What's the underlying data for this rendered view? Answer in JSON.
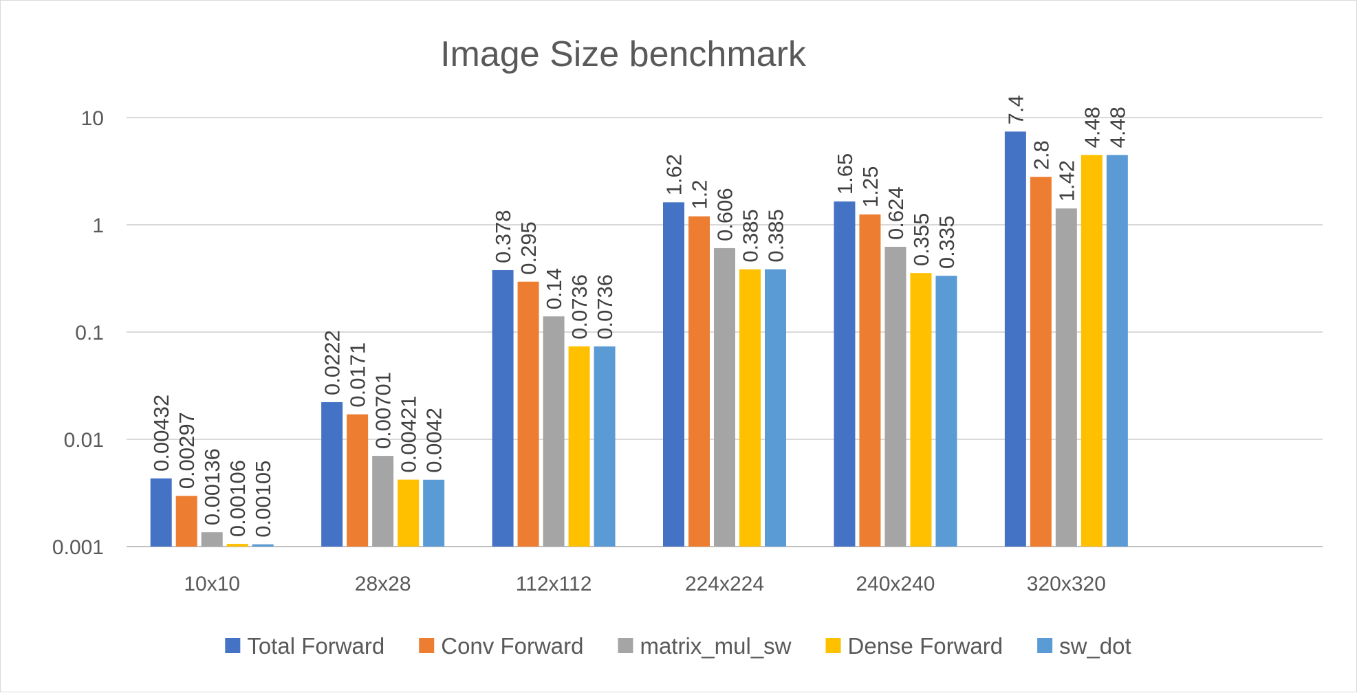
{
  "chart_data": {
    "type": "bar",
    "title": "Image Size benchmark",
    "xlabel": "",
    "ylabel": "",
    "yscale": "log",
    "ylim": [
      0.001,
      10
    ],
    "yticks": [
      "0.001",
      "0.01",
      "0.1",
      "1",
      "10"
    ],
    "grid": true,
    "legend_position": "bottom",
    "categories": [
      "10x10",
      "28x28",
      "112x112",
      "224x224",
      "240x240",
      "320x320"
    ],
    "series": [
      {
        "name": "Total Forward",
        "color": "#4472C4",
        "values": [
          0.00432,
          0.0222,
          0.378,
          1.62,
          1.65,
          7.4
        ],
        "labels": [
          "0.00432",
          "0.0222",
          "0.378",
          "1.62",
          "1.65",
          "7.4"
        ]
      },
      {
        "name": "Conv Forward",
        "color": "#ED7D31",
        "values": [
          0.00297,
          0.0171,
          0.295,
          1.2,
          1.25,
          2.8
        ],
        "labels": [
          "0.00297",
          "0.0171",
          "0.295",
          "1.2",
          "1.25",
          "2.8"
        ]
      },
      {
        "name": "matrix_mul_sw",
        "color": "#A5A5A5",
        "values": [
          0.00136,
          0.00701,
          0.14,
          0.606,
          0.624,
          1.42
        ],
        "labels": [
          "0.00136",
          "0.00701",
          "0.14",
          "0.606",
          "0.624",
          "1.42"
        ]
      },
      {
        "name": "Dense Forward",
        "color": "#FFC000",
        "values": [
          0.00106,
          0.00421,
          0.0736,
          0.385,
          0.355,
          4.48
        ],
        "labels": [
          "0.00106",
          "0.00421",
          "0.0736",
          "0.385",
          "0.355",
          "4.48"
        ]
      },
      {
        "name": "sw_dot",
        "color": "#5B9BD5",
        "values": [
          0.00105,
          0.0042,
          0.0736,
          0.385,
          0.335,
          4.48
        ],
        "labels": [
          "0.00105",
          "0.0042",
          "0.0736",
          "0.385",
          "0.335",
          "4.48"
        ]
      }
    ]
  }
}
